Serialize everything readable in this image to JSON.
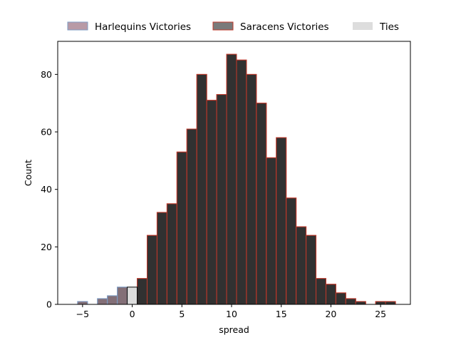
{
  "chart_data": {
    "type": "bar",
    "xlabel": "spread",
    "ylabel": "Count",
    "xlim": [
      -7.5,
      28
    ],
    "ylim": [
      0,
      91.5
    ],
    "xticks": [
      -5,
      0,
      5,
      10,
      15,
      20,
      25
    ],
    "yticks": [
      0,
      20,
      40,
      60,
      80
    ],
    "bin_width": 1,
    "legend_position": "top-center, above plot",
    "series": [
      {
        "name": "Harlequins Victories",
        "color": "#b89aa6",
        "edge": "#7f9cc4",
        "bins": [
          {
            "x": -5,
            "count": 1
          },
          {
            "x": -4,
            "count": 0
          },
          {
            "x": -3,
            "count": 2
          },
          {
            "x": -2,
            "count": 3
          },
          {
            "x": -1,
            "count": 6
          }
        ]
      },
      {
        "name": "Saracens Victories",
        "color": "#7a7a7a",
        "edge": "#c0392b",
        "bins": [
          {
            "x": 1,
            "count": 9
          },
          {
            "x": 2,
            "count": 24
          },
          {
            "x": 3,
            "count": 32
          },
          {
            "x": 4,
            "count": 35
          },
          {
            "x": 5,
            "count": 53
          },
          {
            "x": 6,
            "count": 61
          },
          {
            "x": 7,
            "count": 80
          },
          {
            "x": 8,
            "count": 71
          },
          {
            "x": 9,
            "count": 73
          },
          {
            "x": 10,
            "count": 87
          },
          {
            "x": 11,
            "count": 85
          },
          {
            "x": 12,
            "count": 80
          },
          {
            "x": 13,
            "count": 70
          },
          {
            "x": 14,
            "count": 51
          },
          {
            "x": 15,
            "count": 58
          },
          {
            "x": 16,
            "count": 37
          },
          {
            "x": 17,
            "count": 27
          },
          {
            "x": 18,
            "count": 24
          },
          {
            "x": 19,
            "count": 9
          },
          {
            "x": 20,
            "count": 7
          },
          {
            "x": 21,
            "count": 4
          },
          {
            "x": 22,
            "count": 2
          },
          {
            "x": 23,
            "count": 1
          },
          {
            "x": 24,
            "count": 0
          },
          {
            "x": 25,
            "count": 1
          },
          {
            "x": 26,
            "count": 1
          }
        ]
      },
      {
        "name": "Ties",
        "color": "#dddddd",
        "edge": "#000000",
        "bins": [
          {
            "x": 0,
            "count": 6
          }
        ]
      }
    ],
    "overlay": {
      "color": "#1a1a1a",
      "alpha": 0.75
    }
  }
}
